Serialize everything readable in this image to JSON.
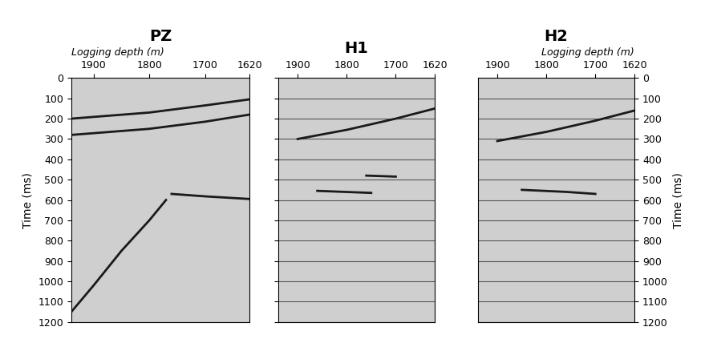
{
  "chart_data": [
    {
      "type": "line",
      "title": "PZ",
      "xlabel": "Logging depth (m)",
      "ylabel": "Time (ms)",
      "xlim": [
        1940,
        1620
      ],
      "xticks": [
        1900,
        1800,
        1700,
        1620
      ],
      "ylim": [
        1200,
        0
      ],
      "yticks": [
        0,
        100,
        200,
        300,
        400,
        500,
        600,
        700,
        800,
        900,
        1000,
        1100,
        1200
      ],
      "grid": false,
      "series": [
        {
          "color": "#1a1a1a",
          "x": [
            1940,
            1800,
            1700,
            1620
          ],
          "values": [
            200,
            170,
            135,
            105
          ]
        },
        {
          "color": "#1a1a1a",
          "x": [
            1940,
            1800,
            1700,
            1620
          ],
          "values": [
            280,
            250,
            215,
            180
          ]
        },
        {
          "color": "#1a1a1a",
          "x": [
            1760,
            1700,
            1620
          ],
          "values": [
            570,
            582,
            595
          ]
        },
        {
          "color": "#1a1a1a",
          "x": [
            1770,
            1800,
            1850,
            1900,
            1940
          ],
          "values": [
            600,
            700,
            850,
            1020,
            1150
          ]
        }
      ]
    },
    {
      "type": "line",
      "title": "H1",
      "tick_labels": "x",
      "xlim": [
        1940,
        1620
      ],
      "xticks": [
        1900,
        1800,
        1700,
        1620
      ],
      "ylim": [
        1200,
        0
      ],
      "yticks": [
        0,
        100,
        200,
        300,
        400,
        500,
        600,
        700,
        800,
        900,
        1000,
        1100,
        1200
      ],
      "grid": true,
      "series": [
        {
          "color": "#1a1a1a",
          "x": [
            1900,
            1800,
            1700,
            1620
          ],
          "values": [
            300,
            255,
            200,
            150
          ]
        },
        {
          "color": "#1a1a1a",
          "x": [
            1760,
            1700
          ],
          "values": [
            480,
            485
          ]
        },
        {
          "color": "#1a1a1a",
          "x": [
            1860,
            1750
          ],
          "values": [
            555,
            565
          ]
        }
      ]
    },
    {
      "type": "line",
      "title": "H2",
      "xlabel": "Logging depth (m)",
      "ylabel": "Time (ms)",
      "xlim": [
        1940,
        1620
      ],
      "xticks": [
        1900,
        1800,
        1700,
        1620
      ],
      "ylim": [
        1200,
        0
      ],
      "yticks": [
        0,
        100,
        200,
        300,
        400,
        500,
        600,
        700,
        800,
        900,
        1000,
        1100,
        1200
      ],
      "grid": true,
      "series": [
        {
          "color": "#1a1a1a",
          "x": [
            1900,
            1800,
            1700,
            1620
          ],
          "values": [
            310,
            265,
            210,
            160
          ]
        },
        {
          "color": "#1a1a1a",
          "x": [
            1850,
            1760,
            1700
          ],
          "values": [
            550,
            560,
            570
          ]
        }
      ]
    }
  ]
}
